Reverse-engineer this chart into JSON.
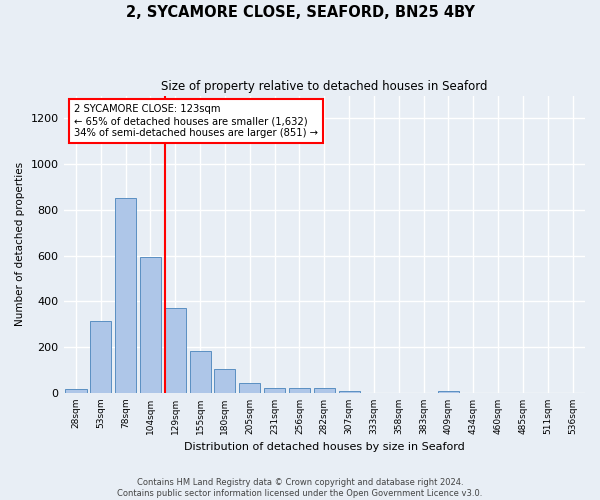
{
  "title": "2, SYCAMORE CLOSE, SEAFORD, BN25 4BY",
  "subtitle": "Size of property relative to detached houses in Seaford",
  "xlabel": "Distribution of detached houses by size in Seaford",
  "ylabel": "Number of detached properties",
  "categories": [
    "28sqm",
    "53sqm",
    "78sqm",
    "104sqm",
    "129sqm",
    "155sqm",
    "180sqm",
    "205sqm",
    "231sqm",
    "256sqm",
    "282sqm",
    "307sqm",
    "333sqm",
    "358sqm",
    "383sqm",
    "409sqm",
    "434sqm",
    "460sqm",
    "485sqm",
    "511sqm",
    "536sqm"
  ],
  "values": [
    15,
    315,
    850,
    595,
    370,
    185,
    105,
    45,
    20,
    20,
    20,
    10,
    0,
    0,
    0,
    10,
    0,
    0,
    0,
    0,
    0
  ],
  "bar_color": "#aec6e8",
  "bar_edge_color": "#5a8fc2",
  "vline_color": "red",
  "vline_bar_index": 4,
  "annotation_text": "2 SYCAMORE CLOSE: 123sqm\n← 65% of detached houses are smaller (1,632)\n34% of semi-detached houses are larger (851) →",
  "annotation_box_color": "white",
  "annotation_box_edge_color": "red",
  "ylim": [
    0,
    1300
  ],
  "yticks": [
    0,
    200,
    400,
    600,
    800,
    1000,
    1200
  ],
  "footnote": "Contains HM Land Registry data © Crown copyright and database right 2024.\nContains public sector information licensed under the Open Government Licence v3.0.",
  "background_color": "#e8eef5",
  "grid_color": "white"
}
